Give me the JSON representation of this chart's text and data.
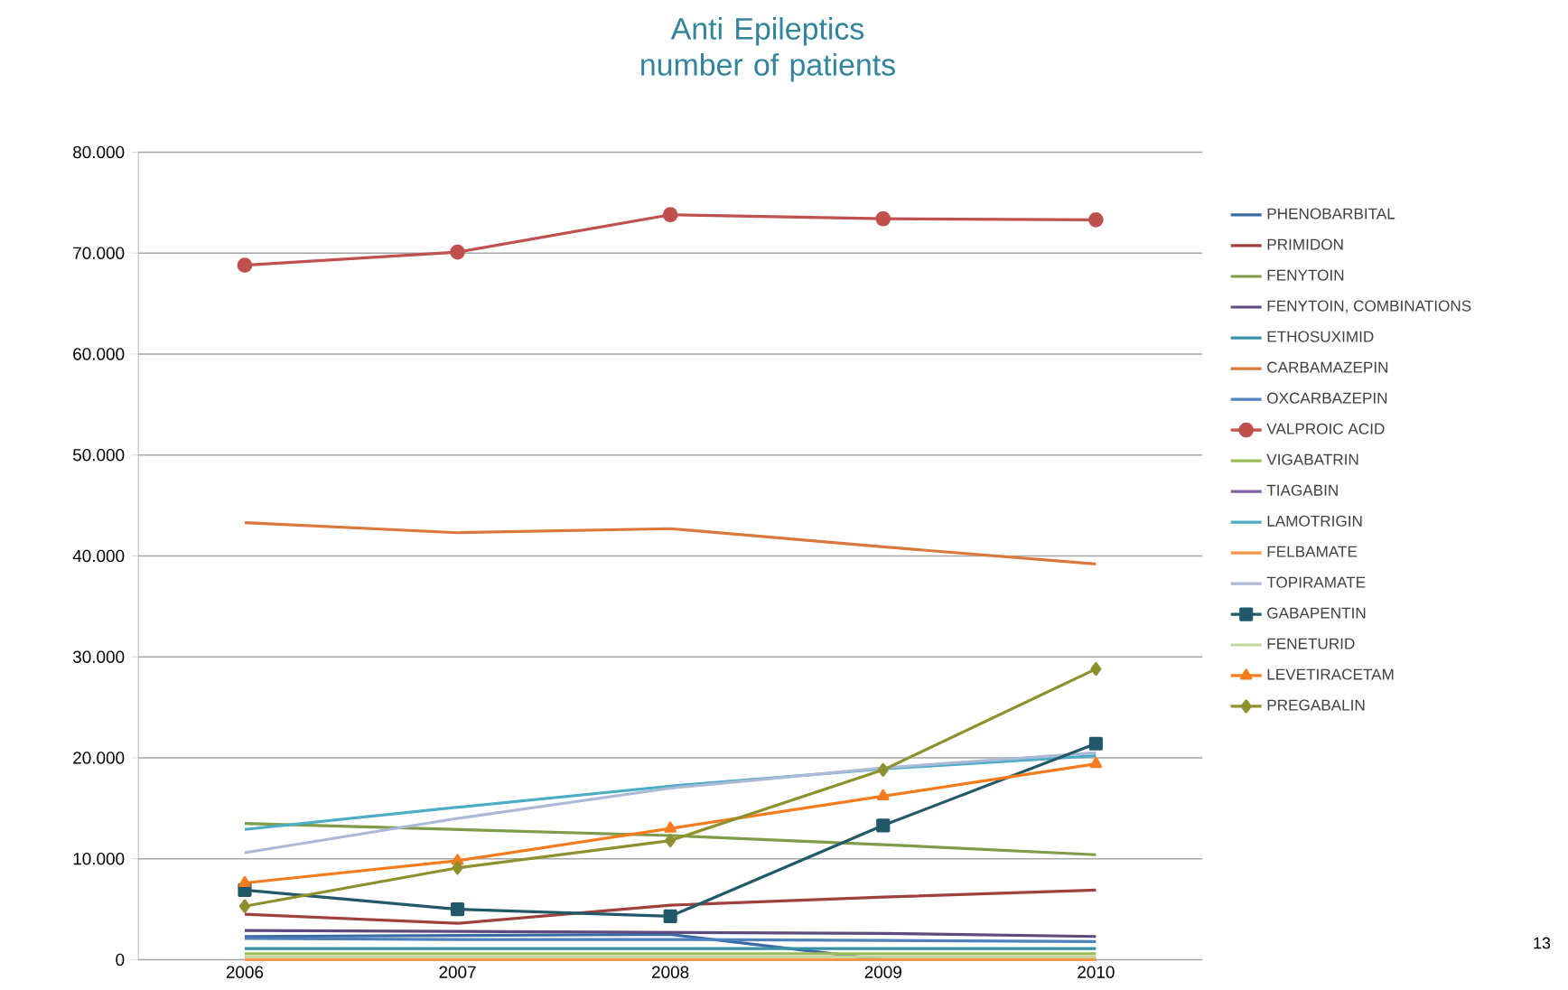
{
  "chart_data": {
    "type": "line",
    "title": "Anti Epileptics\nnumber of patients",
    "categories": [
      "2006",
      "2007",
      "2008",
      "2009",
      "2010"
    ],
    "ylim": [
      0,
      80000
    ],
    "yticks": [
      {
        "value": 0,
        "label": "0"
      },
      {
        "value": 10000,
        "label": "10.000"
      },
      {
        "value": 20000,
        "label": "20.000"
      },
      {
        "value": 30000,
        "label": "30.000"
      },
      {
        "value": 40000,
        "label": "40.000"
      },
      {
        "value": 50000,
        "label": "50.000"
      },
      {
        "value": 60000,
        "label": "60.000"
      },
      {
        "value": 70000,
        "label": "70.000"
      },
      {
        "value": 80000,
        "label": "80.000"
      }
    ],
    "grid": "y",
    "legend": "right",
    "marker": "none",
    "annotations": [
      "13"
    ],
    "series": [
      {
        "name": "PHENOBARBITAL",
        "color": "#3a6aa3",
        "values": [
          2300,
          2400,
          2500,
          0,
          0
        ]
      },
      {
        "name": "PRIMIDON",
        "color": "#a0403d",
        "values": [
          4500,
          3600,
          5400,
          6200,
          6900
        ]
      },
      {
        "name": "FENYTOIN",
        "color": "#7f9a48",
        "values": [
          13500,
          12900,
          12300,
          11400,
          10400
        ]
      },
      {
        "name": "FENYTOIN, COMBINATIONS",
        "color": "#5f4a7d",
        "values": [
          2900,
          2800,
          2700,
          2600,
          2300
        ]
      },
      {
        "name": "ETHOSUXIMID",
        "color": "#3891a7",
        "values": [
          1100,
          1100,
          1100,
          1100,
          1100
        ]
      },
      {
        "name": "CARBAMAZEPIN",
        "color": "#d9783a",
        "values": [
          43300,
          42300,
          42700,
          40900,
          39200
        ]
      },
      {
        "name": "OXCARBAZEPIN",
        "color": "#4f81bd",
        "values": [
          2100,
          2000,
          2000,
          1900,
          1800
        ]
      },
      {
        "name": "VALPROIC ACID",
        "color": "#c0504d",
        "values": [
          68800,
          70100,
          73800,
          73400,
          73300
        ],
        "marker": "circle"
      },
      {
        "name": "VIGABATRIN",
        "color": "#9bbb59",
        "values": [
          600,
          600,
          600,
          600,
          600
        ]
      },
      {
        "name": "TIAGABIN",
        "color": "#8064a2",
        "values": [
          null,
          null,
          null,
          null,
          null
        ]
      },
      {
        "name": "LAMOTRIGIN",
        "color": "#4bacc6",
        "values": [
          12900,
          15100,
          17200,
          18900,
          20200
        ]
      },
      {
        "name": "FELBAMATE",
        "color": "#f79646",
        "values": [
          0,
          0,
          0,
          0,
          0
        ]
      },
      {
        "name": "TOPIRAMATE",
        "color": "#aab9d6",
        "values": [
          10600,
          14000,
          17000,
          19000,
          20500
        ]
      },
      {
        "name": "GABAPENTIN",
        "color": "#215968",
        "values": [
          6900,
          5000,
          4300,
          13300,
          21400
        ],
        "marker": "square"
      },
      {
        "name": "FENETURID",
        "color": "#c3d69b",
        "values": [
          300,
          300,
          300,
          300,
          300
        ]
      },
      {
        "name": "LEVETIRACETAM",
        "color": "#f57c1e",
        "values": [
          7600,
          9800,
          13000,
          16200,
          19400
        ],
        "marker": "triangle"
      },
      {
        "name": "PREGABALIN",
        "color": "#8e902e",
        "values": [
          5300,
          9100,
          11800,
          18800,
          28800
        ],
        "marker": "diamond"
      }
    ]
  }
}
